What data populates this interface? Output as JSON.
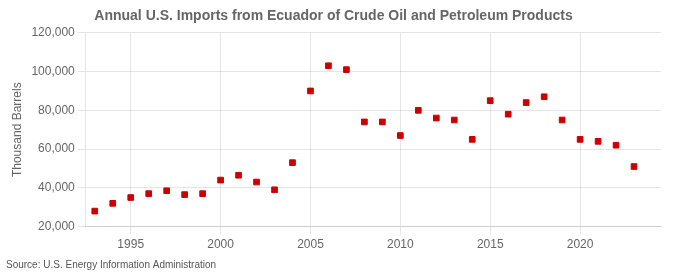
{
  "chart_data": {
    "type": "scatter",
    "title": "Annual U.S. Imports from Ecuador of Crude Oil and Petroleum Products",
    "y_label": "Thousand Barrels",
    "annotation": "Source: U.S. Energy Information Administration",
    "x": [
      1993,
      1994,
      1995,
      1996,
      1997,
      1998,
      1999,
      2000,
      2001,
      2002,
      2003,
      2004,
      2005,
      2006,
      2007,
      2008,
      2009,
      2010,
      2011,
      2012,
      2013,
      2014,
      2015,
      2016,
      2017,
      2018,
      2019,
      2020,
      2021,
      2022,
      2023
    ],
    "values": [
      28000,
      32000,
      35000,
      37000,
      38500,
      36500,
      37000,
      44000,
      46500,
      43000,
      39000,
      53000,
      90000,
      103000,
      101000,
      74000,
      74000,
      67000,
      80000,
      76000,
      75000,
      65000,
      85000,
      78000,
      84000,
      87000,
      75000,
      65000,
      64000,
      62000,
      51000
    ],
    "color": "#cc0000",
    "marker": "square",
    "xlim": [
      1992.5,
      2024.5
    ],
    "xticks": [
      1995,
      2000,
      2005,
      2010,
      2015,
      2020
    ],
    "ylim": [
      20000,
      120000
    ],
    "yticks": [
      {
        "value": 20000,
        "label": "20,000"
      },
      {
        "value": 40000,
        "label": "40,000"
      },
      {
        "value": 60000,
        "label": "60,000"
      },
      {
        "value": 80000,
        "label": "80,000"
      },
      {
        "value": 100000,
        "label": "100,000"
      },
      {
        "value": 120000,
        "label": "120,000"
      }
    ],
    "grid": true
  }
}
